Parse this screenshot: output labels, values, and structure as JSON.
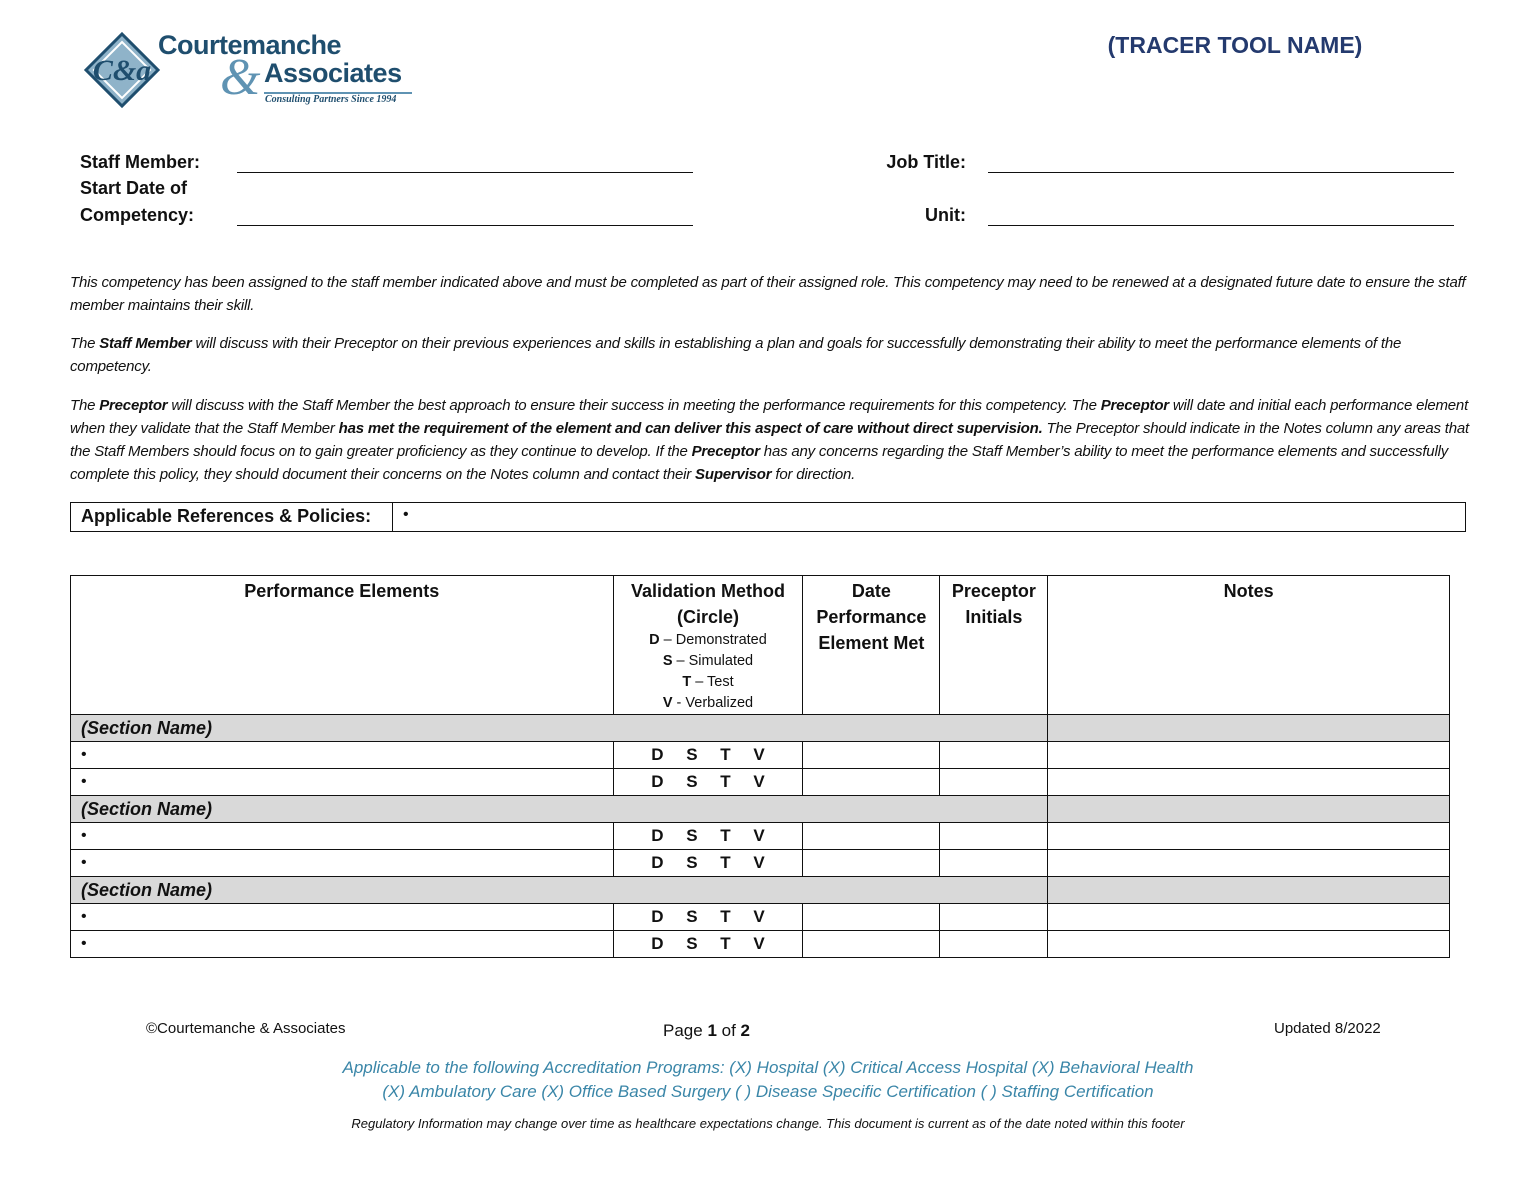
{
  "header": {
    "logo": {
      "line1": "Courtemanche",
      "line2": "Associates",
      "tagline": "Consulting Partners Since 1994",
      "monogram": "C&a"
    },
    "tool_name": "(TRACER TOOL NAME)"
  },
  "fields": {
    "staff_member": "Staff Member:",
    "start_date_1": "Start Date of",
    "start_date_2": "Competency:",
    "job_title": "Job Title:",
    "unit": "Unit:"
  },
  "paragraphs": {
    "p1": "This competency has been assigned to the staff member indicated above and must be completed as part of their assigned role.  This competency may need to be renewed at a designated future date to ensure the staff member maintains their skill.",
    "p2a": "The ",
    "p2b": "Staff Member",
    "p2c": " will discuss with their Preceptor on their previous experiences and skills in establishing a plan and goals for successfully demonstrating their ability to meet the performance elements of the competency.",
    "p3a": "The ",
    "p3b": "Preceptor",
    "p3c": " will discuss with the Staff Member the best approach to ensure their success in meeting the performance requirements for this competency.  The ",
    "p3d": "Preceptor",
    "p3e": " will date and initial each performance element when they validate that the Staff Member ",
    "p3f": "has met the requirement of the element and can deliver this aspect of care without direct supervision.",
    "p3g": "  The Preceptor should indicate in the Notes column any areas that the Staff Members should focus on to gain greater proficiency as they continue to develop.  If the ",
    "p3h": "Preceptor",
    "p3i": " has any concerns regarding the Staff Member’s ability to meet the performance elements and successfully complete this policy, they should document their concerns on the Notes column and contact their ",
    "p3j": "Supervisor",
    "p3k": " for direction."
  },
  "references": {
    "label": "Applicable References & Policies:",
    "bullet": "•"
  },
  "table": {
    "headers": {
      "performance": "Performance Elements",
      "validation_1": "Validation Method",
      "validation_2": "(Circle)",
      "legend": [
        {
          "k": "D",
          "v": " – Demonstrated"
        },
        {
          "k": "S",
          "v": " – Simulated"
        },
        {
          "k": "T",
          "v": " – Test"
        },
        {
          "k": "V",
          "v": " - Verbalized"
        }
      ],
      "date_1": "Date",
      "date_2": "Performance",
      "date_3": "Element Met",
      "preceptor_1": "Preceptor",
      "preceptor_2": "Initials",
      "notes": "Notes"
    },
    "sections": [
      {
        "name": "(Section Name)",
        "rows": [
          "•",
          "•"
        ]
      },
      {
        "name": "(Section Name)",
        "rows": [
          "•",
          "•"
        ]
      },
      {
        "name": "(Section Name)",
        "rows": [
          "•",
          "•"
        ]
      }
    ],
    "methods": "D S T V"
  },
  "footer": {
    "copyright": "©Courtemanche & Associates",
    "page_a": "Page ",
    "page_num": "1",
    "page_b": " of ",
    "page_total": "2",
    "updated": "Updated 8/2022",
    "accr_1": "Applicable to the following Accreditation Programs: (X) Hospital   (X) Critical Access Hospital  (X) Behavioral Health",
    "accr_2": "(X) Ambulatory Care   (X) Office Based Surgery  ( ) Disease Specific Certification  ( ) Staffing Certification",
    "regulatory": "Regulatory Information may change over time as healthcare expectations change. This document is current as of the date noted within this footer"
  },
  "colors": {
    "brand": "#1f4e6e",
    "accent": "#3a86a8",
    "title": "#243a6e",
    "section_bg": "#d9d9d9"
  }
}
